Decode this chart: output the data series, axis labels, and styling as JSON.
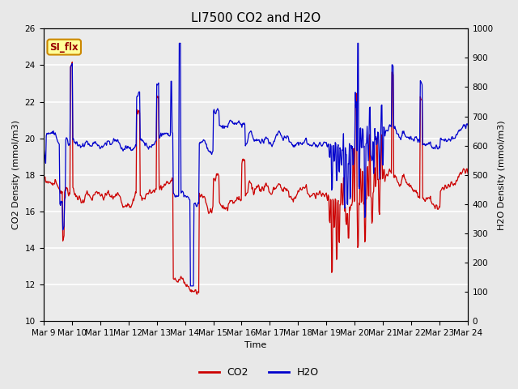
{
  "title": "LI7500 CO2 and H2O",
  "xlabel": "Time",
  "ylabel_left": "CO2 Density (mmol/m3)",
  "ylabel_right": "H2O Density (mmol/m3)",
  "ylim_left": [
    10,
    26
  ],
  "ylim_right": [
    0,
    1000
  ],
  "yticks_left": [
    10,
    12,
    14,
    16,
    18,
    20,
    22,
    24,
    26
  ],
  "yticks_right": [
    0,
    100,
    200,
    300,
    400,
    500,
    600,
    700,
    800,
    900,
    1000
  ],
  "xtick_labels": [
    "Mar 9",
    "Mar 10",
    "Mar 11",
    "Mar 12",
    "Mar 13",
    "Mar 14",
    "Mar 15",
    "Mar 16",
    "Mar 17",
    "Mar 18",
    "Mar 19",
    "Mar 20",
    "Mar 21",
    "Mar 22",
    "Mar 23",
    "Mar 24"
  ],
  "co2_color": "#cc0000",
  "h2o_color": "#0000cc",
  "background_color": "#e8e8e8",
  "plot_bg_color": "#ebebeb",
  "annotation_text": "SI_flx",
  "annotation_bg": "#ffff99",
  "annotation_border": "#cc8800",
  "legend_co2": "CO2",
  "legend_h2o": "H2O",
  "title_fontsize": 11,
  "axis_fontsize": 8,
  "tick_fontsize": 7.5
}
